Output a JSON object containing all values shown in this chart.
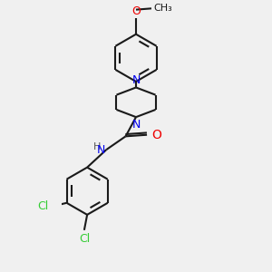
{
  "background_color": "#f0f0f0",
  "bond_color": "#1a1a1a",
  "nitrogen_color": "#0000ee",
  "oxygen_color": "#ee0000",
  "chlorine_color": "#33cc33",
  "h_color": "#555555",
  "bond_width": 1.5,
  "figsize": [
    3.0,
    3.0
  ],
  "dpi": 100,
  "xlim": [
    -2.5,
    2.5
  ],
  "ylim": [
    -4.5,
    4.5
  ],
  "font_size": 9
}
